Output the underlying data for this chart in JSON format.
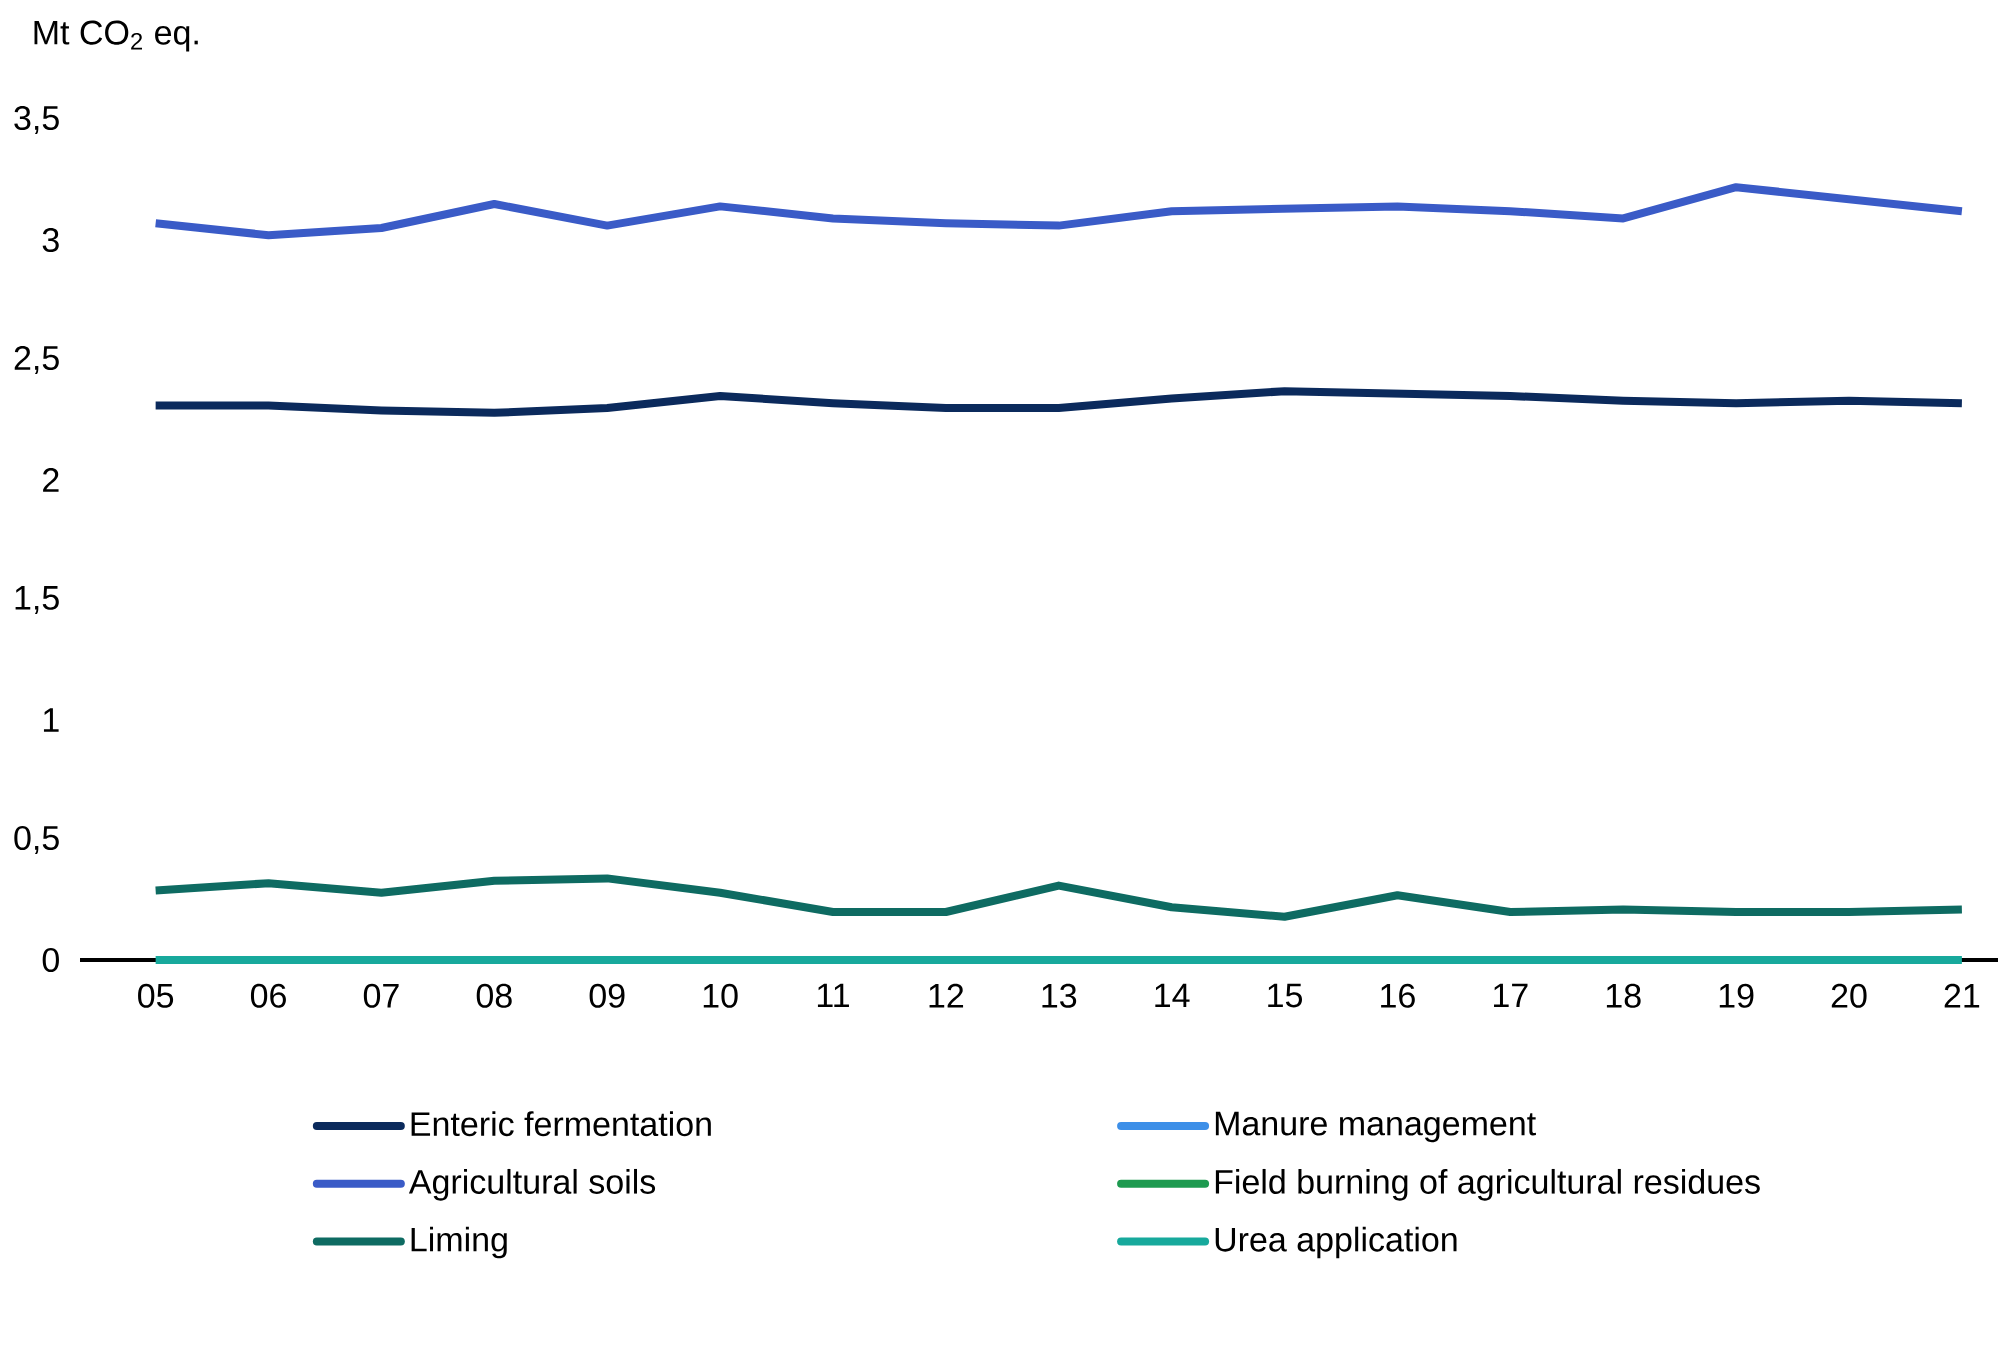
{
  "chart_data": {
    "type": "line",
    "ylabel": "Mt CO$_{2}$ eq.",
    "categories": [
      "05",
      "06",
      "07",
      "08",
      "09",
      "10",
      "11",
      "12",
      "13",
      "14",
      "15",
      "16",
      "17",
      "18",
      "19",
      "20",
      "21"
    ],
    "ylim": [
      0,
      3.5
    ],
    "yticks": [
      0,
      {
        "value": 0.5,
        "label": "0,5"
      },
      1,
      {
        "value": 1.5,
        "label": "1,5"
      },
      2,
      {
        "value": 2.5,
        "label": "2,5"
      },
      3,
      {
        "value": 3.5,
        "label": "3,5"
      }
    ],
    "grid": false,
    "legend": "bottom",
    "marker": "none",
    "line_style": "solid",
    "series": [
      {
        "name": "Enteric fermentation",
        "color": "#0b2a5c",
        "values": [
          2.31,
          2.31,
          2.29,
          2.28,
          2.3,
          2.35,
          2.32,
          2.3,
          2.3,
          2.34,
          2.37,
          2.36,
          2.35,
          2.33,
          2.32,
          2.33,
          2.32
        ]
      },
      {
        "name": "Manure management",
        "color": "#3d8fe8",
        "values": [
          null,
          null,
          null,
          null,
          null,
          null,
          null,
          null,
          null,
          null,
          null,
          null,
          null,
          null,
          null,
          null,
          null
        ]
      },
      {
        "name": "Agricultural soils",
        "color": "#3a5bc7",
        "values": [
          3.07,
          3.02,
          3.05,
          3.15,
          3.06,
          3.14,
          3.09,
          3.07,
          3.06,
          3.12,
          3.13,
          3.14,
          3.12,
          3.09,
          3.22,
          3.17,
          3.12
        ]
      },
      {
        "name": "Field burning of agricultural residues",
        "color": "#1e9a50",
        "values": [
          null,
          null,
          null,
          null,
          null,
          null,
          null,
          null,
          null,
          null,
          null,
          null,
          null,
          null,
          null,
          null,
          null
        ]
      },
      {
        "name": "Liming",
        "color": "#0e6b62",
        "values": [
          0.29,
          0.32,
          0.28,
          0.33,
          0.34,
          0.28,
          0.2,
          0.2,
          0.31,
          0.22,
          0.18,
          0.27,
          0.2,
          0.21,
          0.2,
          0.2,
          0.21
        ]
      },
      {
        "name": "Urea application",
        "color": "#17a99c",
        "values": [
          0,
          0,
          0,
          0,
          0,
          0,
          0,
          0,
          0,
          0,
          0,
          0,
          0,
          0,
          0,
          0,
          0
        ]
      }
    ]
  }
}
